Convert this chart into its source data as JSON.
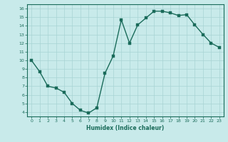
{
  "x": [
    0,
    1,
    2,
    3,
    4,
    5,
    6,
    7,
    8,
    9,
    10,
    11,
    12,
    13,
    14,
    15,
    16,
    17,
    18,
    19,
    20,
    21,
    22,
    23
  ],
  "y": [
    10.0,
    8.7,
    7.0,
    6.8,
    6.3,
    5.0,
    4.2,
    3.9,
    4.5,
    8.5,
    10.5,
    14.7,
    12.0,
    14.1,
    14.9,
    15.7,
    15.7,
    15.5,
    15.2,
    15.3,
    14.1,
    13.0,
    12.0,
    11.5
  ],
  "xlabel": "Humidex (Indice chaleur)",
  "ylabel": "",
  "xlim": [
    -0.5,
    23.5
  ],
  "ylim": [
    3.5,
    16.5
  ],
  "yticks": [
    4,
    5,
    6,
    7,
    8,
    9,
    10,
    11,
    12,
    13,
    14,
    15,
    16
  ],
  "xticks": [
    0,
    1,
    2,
    3,
    4,
    5,
    6,
    7,
    8,
    9,
    10,
    11,
    12,
    13,
    14,
    15,
    16,
    17,
    18,
    19,
    20,
    21,
    22,
    23
  ],
  "line_color": "#1a6b5a",
  "marker_color": "#1a6b5a",
  "bg_color": "#c8eaea",
  "grid_color": "#a8d4d4",
  "tick_label_color": "#1a6b5a",
  "xlabel_color": "#1a6b5a",
  "marker_size": 2.5,
  "line_width": 1.0
}
